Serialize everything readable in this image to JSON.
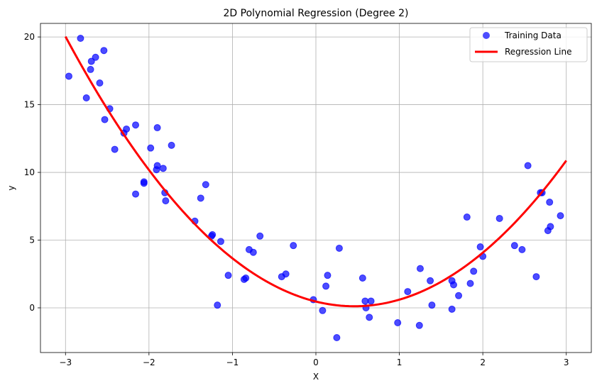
{
  "chart_data": {
    "type": "scatter",
    "title": "2D Polynomial Regression (Degree 2)",
    "xlabel": "X",
    "ylabel": "y",
    "xlim": [
      -3.3,
      3.3
    ],
    "ylim": [
      -3.3,
      21.0
    ],
    "xticks": [
      -3,
      -2,
      -1,
      0,
      1,
      2,
      3
    ],
    "xtick_labels": [
      "−3",
      "−2",
      "−1",
      "0",
      "1",
      "2",
      "3"
    ],
    "yticks": [
      0,
      5,
      10,
      15,
      20
    ],
    "ytick_labels": [
      "0",
      "5",
      "10",
      "15",
      "20"
    ],
    "grid": true,
    "legend_position": "top-right",
    "series": [
      {
        "name": "Training Data",
        "kind": "scatter",
        "color": "#0000ff",
        "opacity": 0.7,
        "points": [
          [
            -2.96,
            17.1
          ],
          [
            -2.82,
            19.9
          ],
          [
            -2.75,
            15.5
          ],
          [
            -2.69,
            18.2
          ],
          [
            -2.7,
            17.6
          ],
          [
            -2.64,
            18.5
          ],
          [
            -2.59,
            16.6
          ],
          [
            -2.54,
            19.0
          ],
          [
            -2.53,
            13.9
          ],
          [
            -2.47,
            14.7
          ],
          [
            -2.41,
            11.7
          ],
          [
            -2.3,
            12.9
          ],
          [
            -2.27,
            13.2
          ],
          [
            -2.16,
            13.5
          ],
          [
            -2.16,
            8.4
          ],
          [
            -2.06,
            9.2
          ],
          [
            -2.06,
            9.3
          ],
          [
            -1.98,
            11.8
          ],
          [
            -1.91,
            10.2
          ],
          [
            -1.9,
            10.5
          ],
          [
            -1.9,
            13.3
          ],
          [
            -1.83,
            10.3
          ],
          [
            -1.81,
            8.5
          ],
          [
            -1.8,
            7.9
          ],
          [
            -1.73,
            12.0
          ],
          [
            -1.45,
            6.4
          ],
          [
            -1.38,
            8.1
          ],
          [
            -1.32,
            9.1
          ],
          [
            -1.25,
            5.3
          ],
          [
            -1.24,
            5.4
          ],
          [
            -1.18,
            0.2
          ],
          [
            -1.14,
            4.9
          ],
          [
            -1.05,
            2.4
          ],
          [
            -0.86,
            2.1
          ],
          [
            -0.84,
            2.2
          ],
          [
            -0.8,
            4.3
          ],
          [
            -0.75,
            4.1
          ],
          [
            -0.67,
            5.3
          ],
          [
            -0.41,
            2.3
          ],
          [
            -0.36,
            2.5
          ],
          [
            -0.27,
            4.6
          ],
          [
            -0.03,
            0.6
          ],
          [
            0.08,
            -0.2
          ],
          [
            0.12,
            1.6
          ],
          [
            0.14,
            2.4
          ],
          [
            0.25,
            -2.2
          ],
          [
            0.28,
            4.4
          ],
          [
            0.56,
            2.2
          ],
          [
            0.59,
            0.5
          ],
          [
            0.6,
            0.0
          ],
          [
            0.64,
            -0.7
          ],
          [
            0.66,
            0.5
          ],
          [
            0.98,
            -1.1
          ],
          [
            1.1,
            1.2
          ],
          [
            1.24,
            -1.3
          ],
          [
            1.25,
            2.9
          ],
          [
            1.37,
            2.0
          ],
          [
            1.39,
            0.2
          ],
          [
            1.63,
            -0.1
          ],
          [
            1.63,
            2.0
          ],
          [
            1.65,
            1.7
          ],
          [
            1.71,
            0.9
          ],
          [
            1.81,
            6.7
          ],
          [
            1.85,
            1.8
          ],
          [
            1.89,
            2.7
          ],
          [
            1.97,
            4.5
          ],
          [
            2.0,
            3.8
          ],
          [
            2.2,
            6.6
          ],
          [
            2.38,
            4.6
          ],
          [
            2.47,
            4.3
          ],
          [
            2.54,
            10.5
          ],
          [
            2.64,
            2.3
          ],
          [
            2.69,
            8.5
          ],
          [
            2.71,
            8.5
          ],
          [
            2.78,
            5.7
          ],
          [
            2.8,
            7.8
          ],
          [
            2.81,
            6.0
          ],
          [
            2.93,
            6.8
          ]
        ]
      },
      {
        "name": "Regression Line",
        "kind": "line",
        "color": "#ff0000",
        "equation": "y = 1.665*x^2 - 1.526*x + 0.465",
        "coefficients": {
          "a": 1.665,
          "b": -1.526,
          "c": 0.465
        },
        "x_range": [
          -3,
          3
        ]
      }
    ]
  }
}
